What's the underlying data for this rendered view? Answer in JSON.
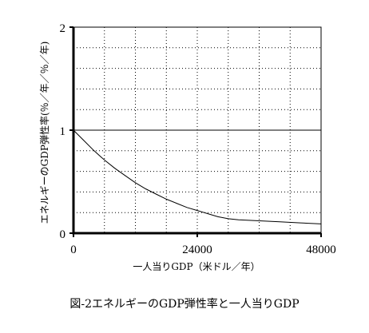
{
  "chart_data": {
    "type": "line",
    "title": "",
    "xlabel": "一人当りGDP（米ドル／年）",
    "ylabel": "エネルギーのGDP弾性率(％／年／％／年)",
    "xlim": [
      0,
      48000
    ],
    "ylim": [
      0,
      2
    ],
    "xticks": [
      0,
      24000,
      48000
    ],
    "xtick_labels": [
      "0",
      "24000",
      "48000"
    ],
    "yticks": [
      0,
      1,
      2
    ],
    "ytick_labels": [
      "0",
      "1",
      "2"
    ],
    "grid": "dotted",
    "reference_line_y": 1,
    "series": [
      {
        "name": "",
        "color": "#000000",
        "x": [
          0,
          2000,
          4000,
          6000,
          8000,
          10000,
          12000,
          14000,
          16000,
          18000,
          20000,
          22000,
          24000,
          26000,
          28000,
          30000,
          32000,
          36000,
          40000,
          44000,
          48000
        ],
        "y": [
          1.0,
          0.9,
          0.8,
          0.71,
          0.63,
          0.56,
          0.49,
          0.43,
          0.38,
          0.33,
          0.29,
          0.25,
          0.22,
          0.19,
          0.16,
          0.14,
          0.13,
          0.12,
          0.11,
          0.1,
          0.09
        ]
      }
    ]
  },
  "caption": "図-2エネルギーのGDP弾性率と一人当りGDP"
}
